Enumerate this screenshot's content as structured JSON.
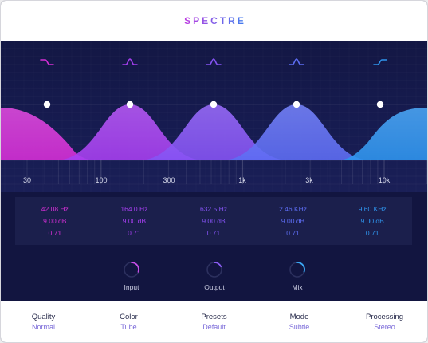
{
  "title": "SPECTRE",
  "bands": [
    {
      "freq": "42.08 Hz",
      "gain": "9.00 dB",
      "q": "0.71",
      "color": "#d52fd6",
      "filter_icon": "low-shelf-icon",
      "peak": 0.48
    },
    {
      "freq": "164.0 Hz",
      "gain": "9.00 dB",
      "q": "0.71",
      "color": "#a63ff0",
      "filter_icon": "bell-icon",
      "peak": 0.48
    },
    {
      "freq": "632.5 Hz",
      "gain": "9.00 dB",
      "q": "0.71",
      "color": "#8553f4",
      "filter_icon": "bell-icon",
      "peak": 0.48
    },
    {
      "freq": "2.46 KHz",
      "gain": "9.00 dB",
      "q": "0.71",
      "color": "#5d6df3",
      "filter_icon": "bell-icon",
      "peak": 0.48
    },
    {
      "freq": "9.60 KHz",
      "gain": "9.00 dB",
      "q": "0.71",
      "color": "#2f95ee",
      "filter_icon": "high-shelf-icon",
      "peak": 0.48
    }
  ],
  "freq_labels": [
    "30",
    "100",
    "300",
    "1k",
    "3k",
    "10k"
  ],
  "knobs": [
    {
      "label": "Input",
      "value": 0.3,
      "color": "#c84ee8"
    },
    {
      "label": "Output",
      "value": 0.18,
      "color": "#8b5cf6"
    },
    {
      "label": "Mix",
      "value": 0.3,
      "color": "#3ba8f5"
    }
  ],
  "footer": [
    {
      "name": "Quality",
      "value": "Normal"
    },
    {
      "name": "Color",
      "value": "Tube"
    },
    {
      "name": "Presets",
      "value": "Default"
    },
    {
      "name": "Mode",
      "value": "Subtle"
    },
    {
      "name": "Processing",
      "value": "Stereo"
    }
  ]
}
